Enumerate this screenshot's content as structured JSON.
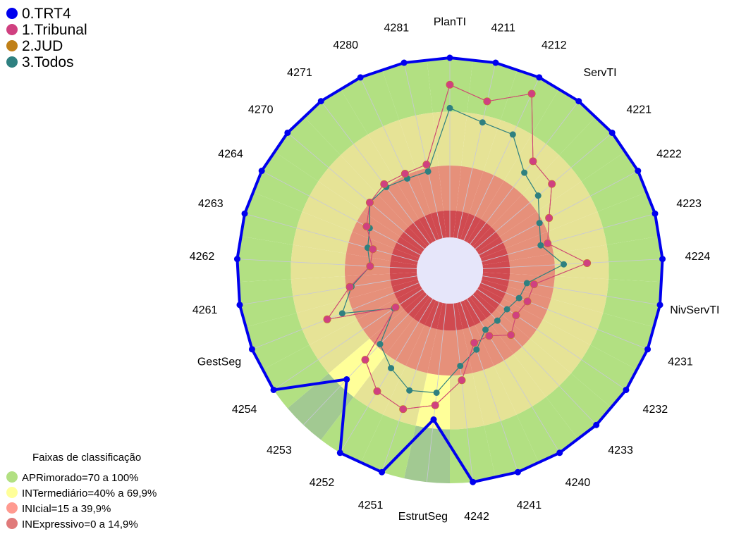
{
  "chart_data": {
    "type": "radar",
    "axes": [
      "PlanTI",
      "4211",
      "4212",
      "ServTI",
      "4221",
      "4222",
      "4223",
      "4224",
      "NivServTI",
      "4231",
      "4232",
      "4233",
      "4240",
      "4241",
      "4242",
      "EstrutSeg",
      "4251",
      "4252",
      "4253",
      "4254",
      "GestSeg",
      "4261",
      "4262",
      "4263",
      "4264",
      "4270",
      "4271",
      "4280",
      "4281"
    ],
    "range": [
      0,
      100
    ],
    "series": [
      {
        "name": "0.TRT4",
        "color": "#0000ee",
        "values": [
          100,
          100,
          100,
          100,
          100,
          100,
          100,
          100,
          100,
          100,
          100,
          100,
          100,
          100,
          100,
          65,
          100,
          100,
          65,
          100,
          100,
          100,
          100,
          100,
          100,
          100,
          100,
          100,
          100
        ]
      },
      {
        "name": "1.Tribunal",
        "color": "#d04080",
        "values": [
          85,
          78,
          90,
          58,
          56,
          44,
          38,
          58,
          29,
          28,
          26,
          31,
          24,
          24,
          43,
          57,
          63,
          60,
          50,
          18,
          55,
          38,
          26,
          26,
          34,
          40,
          42,
          41,
          42
        ]
      },
      {
        "name": "2.JUD",
        "color": "#c08018",
        "values": [
          85,
          78,
          90,
          58,
          56,
          44,
          38,
          58,
          29,
          28,
          26,
          31,
          24,
          24,
          43,
          57,
          63,
          60,
          50,
          18,
          55,
          38,
          26,
          26,
          34,
          40,
          42,
          41,
          42
        ]
      },
      {
        "name": "3.Todos",
        "color": "#2e8080",
        "values": [
          72,
          66,
          65,
          50,
          46,
          38,
          34,
          45,
          25,
          23,
          20,
          20,
          20,
          28,
          35,
          50,
          52,
          45,
          38,
          19,
          46,
          37,
          26,
          29,
          32,
          40,
          40,
          38,
          38
        ]
      }
    ],
    "bands": [
      {
        "label": "APRimorado=70 a 100%",
        "color": "#b2e082",
        "muted": "#a2c992"
      },
      {
        "label": "INTermediário=40% a 69,9%",
        "color": "#ffff99",
        "muted": "#e6e396"
      },
      {
        "label": "INIcial=15 a 39,9%",
        "color": "#ff9a90",
        "muted": "#e6907a"
      },
      {
        "label": "INExpressivo=0 a 14,9%",
        "color": "#e07a7a",
        "muted": "#d04a50"
      }
    ],
    "bands_title": "Faixas de classificação"
  }
}
